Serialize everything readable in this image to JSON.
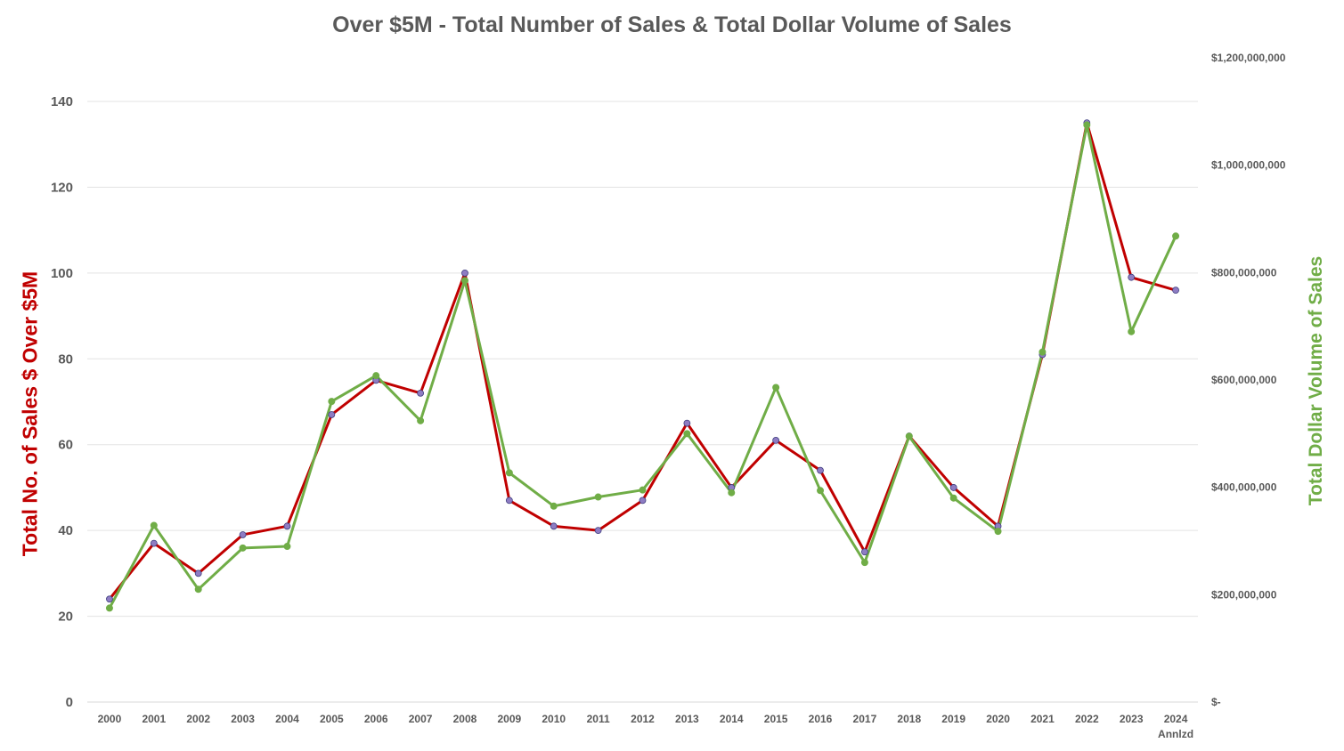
{
  "chart_data": {
    "type": "line",
    "title": "Over $5M  - Total Number of Sales  & Total Dollar Volume of Sales",
    "ylabel": "Total No. of Sales $ Over $5M",
    "y2label": "Total Dollar Volume of Sales",
    "categories": [
      "2000",
      "2001",
      "2002",
      "2003",
      "2004",
      "2005",
      "2006",
      "2007",
      "2008",
      "2009",
      "2010",
      "2011",
      "2012",
      "2013",
      "2014",
      "2015",
      "2016",
      "2017",
      "2018",
      "2019",
      "2020",
      "2021",
      "2022",
      "2023",
      "2024"
    ],
    "category_sublabels": {
      "2024": "Annlzd"
    },
    "ylim": [
      0,
      140
    ],
    "yticks": [
      0,
      20,
      40,
      60,
      80,
      100,
      120,
      140
    ],
    "y2lim": [
      0,
      1200000000
    ],
    "y2ticks": [
      "$-",
      "$200,000,000",
      "$400,000,000",
      "$600,000,000",
      "$800,000,000",
      "$1,000,000,000",
      "$1,200,000,000"
    ],
    "grid": true,
    "legend": "none",
    "series": [
      {
        "axis": "left",
        "color": "#C00000",
        "marker_color": "#8E7CC3",
        "values": [
          24,
          37,
          30,
          39,
          41,
          67,
          75,
          72,
          100,
          47,
          41,
          40,
          47,
          65,
          50,
          61,
          54,
          35,
          62,
          50,
          41,
          81,
          135,
          99,
          96
        ]
      },
      {
        "axis": "right",
        "color": "#70AD47",
        "marker_color": "#70AD47",
        "values": [
          175000000,
          329000000,
          210000000,
          287000000,
          290000000,
          560000000,
          608000000,
          524000000,
          785000000,
          427000000,
          365000000,
          382000000,
          395000000,
          500000000,
          390000000,
          586000000,
          394000000,
          260000000,
          495000000,
          380000000,
          318000000,
          652000000,
          1075000000,
          690000000,
          868000000
        ]
      }
    ]
  }
}
